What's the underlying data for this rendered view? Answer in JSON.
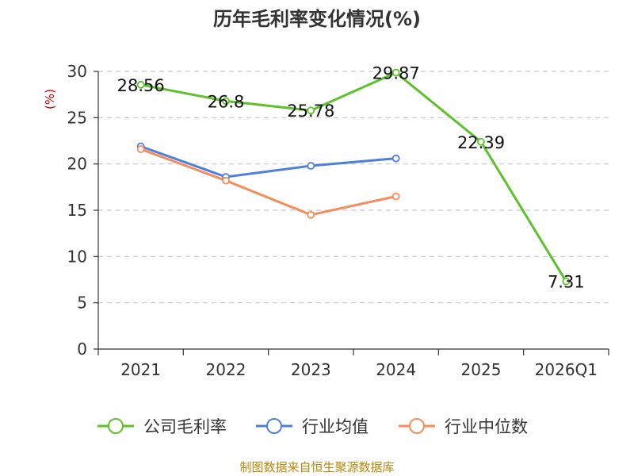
{
  "chart_data": {
    "type": "line",
    "title": "历年毛利率变化情况(%)",
    "ylabel": "(%)",
    "xlabel": "",
    "ylim": [
      0,
      30
    ],
    "yticks": [
      0,
      5,
      10,
      15,
      20,
      25,
      30
    ],
    "categories": [
      "2021",
      "2022",
      "2023",
      "2024",
      "2025",
      "2026Q1"
    ],
    "grid": true,
    "legend_position": "bottom",
    "series": [
      {
        "name": "公司毛利率",
        "color": "#5cc12a",
        "values": [
          28.56,
          26.8,
          25.78,
          29.87,
          22.39,
          7.31
        ],
        "labels": [
          "28.56",
          "26.8",
          "25.78",
          "29.87",
          "22.39",
          "7.31"
        ]
      },
      {
        "name": "行业均值",
        "color": "#4f7fdc",
        "values": [
          21.9,
          18.6,
          19.8,
          20.6,
          null,
          null
        ]
      },
      {
        "name": "行业中位数",
        "color": "#f58c5a",
        "values": [
          21.6,
          18.2,
          14.5,
          16.5,
          null,
          null
        ]
      }
    ],
    "source": "制图数据来自恒生聚源数据库"
  }
}
